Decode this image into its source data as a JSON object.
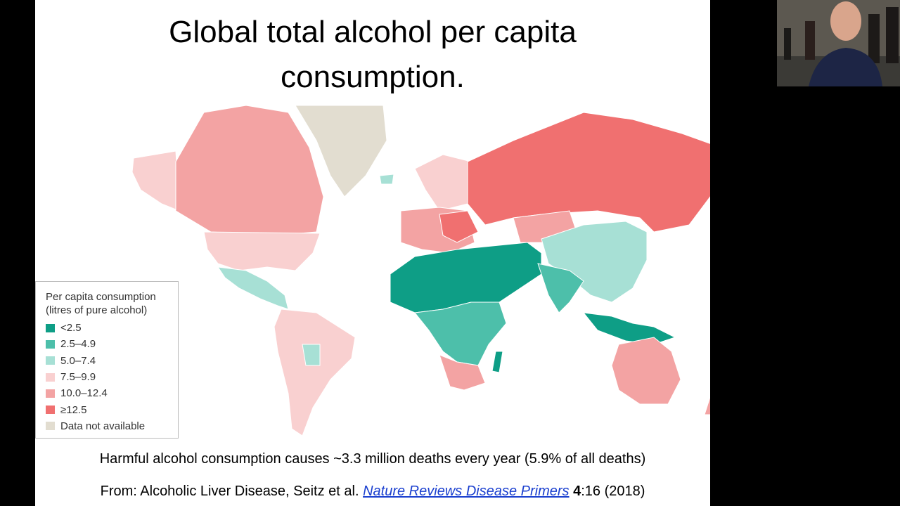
{
  "slide": {
    "title": "Global total alcohol per capita consumption.",
    "legend": {
      "title": "Per capita consumption",
      "subtitle": "(litres of pure alcohol)",
      "items": [
        {
          "label": "<2.5",
          "color": "#0e9e86"
        },
        {
          "label": "2.5–4.9",
          "color": "#4dbfaa"
        },
        {
          "label": "5.0–7.4",
          "color": "#a7e0d5"
        },
        {
          "label": "7.5–9.9",
          "color": "#f9d0d0"
        },
        {
          "label": "10.0–12.4",
          "color": "#f3a3a3"
        },
        {
          "label": "≥12.5",
          "color": "#f07070"
        },
        {
          "label": "Data not available",
          "color": "#e2ddd0"
        }
      ]
    },
    "caption": "Harmful alcohol consumption causes ~3.3 million deaths every year (5.9% of all deaths)",
    "citation": {
      "prefix": "From: Alcoholic Liver Disease, Seitz et al.",
      "journal": "Nature Reviews Disease Primers",
      "volume": "4",
      "rest": ":16 (2018)"
    }
  }
}
